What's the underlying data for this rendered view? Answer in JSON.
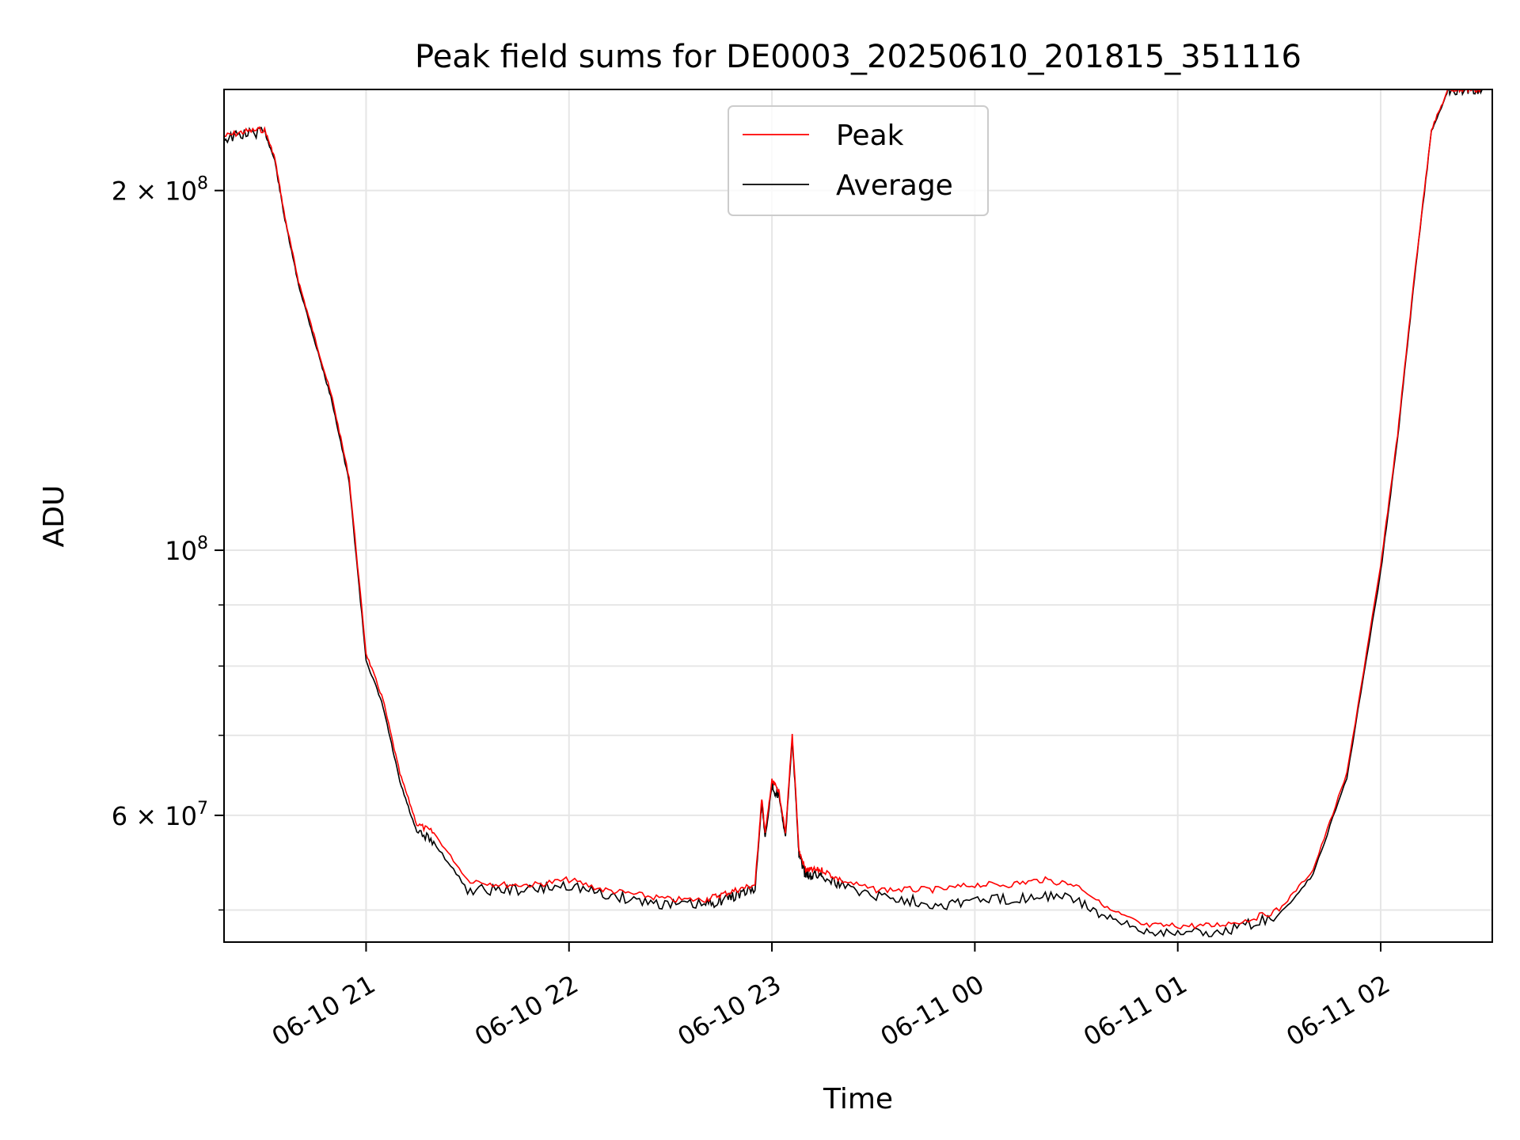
{
  "chart_data": {
    "type": "line",
    "title": "Peak field sums for DE0003_20250610_201815_351116",
    "xlabel": "Time",
    "ylabel": "ADU",
    "yscale": "log",
    "grid": true,
    "legend_position": "top-center",
    "xlim": [
      "2025-06-10 20:18",
      "2025-06-11 02:33"
    ],
    "ylim": [
      47000000,
      243000000
    ],
    "x_ticks": [
      {
        "value": "2025-06-10 21:00",
        "label": "06-10 21"
      },
      {
        "value": "2025-06-10 22:00",
        "label": "06-10 22"
      },
      {
        "value": "2025-06-10 23:00",
        "label": "06-10 23"
      },
      {
        "value": "2025-06-11 00:00",
        "label": "06-11 00"
      },
      {
        "value": "2025-06-11 01:00",
        "label": "06-11 01"
      },
      {
        "value": "2025-06-11 02:00",
        "label": "06-11 02"
      }
    ],
    "y_major_ticks": [
      {
        "value": 200000000,
        "mantissa": "2",
        "exponent": "8"
      },
      {
        "value": 100000000,
        "mantissa": "",
        "exponent": "8"
      },
      {
        "value": 60000000,
        "mantissa": "6",
        "exponent": "7"
      }
    ],
    "y_minor_ticks": [
      50000000,
      70000000,
      80000000,
      90000000
    ],
    "series": [
      {
        "name": "Peak",
        "color": "#ff0000",
        "x": [
          "2025-06-10 20:18",
          "2025-06-10 20:24",
          "2025-06-10 20:30",
          "2025-06-10 20:33",
          "2025-06-10 20:36",
          "2025-06-10 20:40",
          "2025-06-10 20:45",
          "2025-06-10 20:50",
          "2025-06-10 20:55",
          "2025-06-10 21:00",
          "2025-06-10 21:05",
          "2025-06-10 21:10",
          "2025-06-10 21:15",
          "2025-06-10 21:20",
          "2025-06-10 21:30",
          "2025-06-10 21:40",
          "2025-06-10 21:50",
          "2025-06-10 22:00",
          "2025-06-10 22:10",
          "2025-06-10 22:20",
          "2025-06-10 22:30",
          "2025-06-10 22:40",
          "2025-06-10 22:45",
          "2025-06-10 22:50",
          "2025-06-10 22:55",
          "2025-06-10 22:57",
          "2025-06-10 22:58",
          "2025-06-10 23:00",
          "2025-06-10 23:02",
          "2025-06-10 23:04",
          "2025-06-10 23:06",
          "2025-06-10 23:07",
          "2025-06-10 23:08",
          "2025-06-10 23:10",
          "2025-06-10 23:12",
          "2025-06-10 23:15",
          "2025-06-10 23:20",
          "2025-06-10 23:30",
          "2025-06-10 23:40",
          "2025-06-10 23:50",
          "2025-06-11 00:00",
          "2025-06-11 00:10",
          "2025-06-11 00:20",
          "2025-06-11 00:30",
          "2025-06-11 00:40",
          "2025-06-11 00:50",
          "2025-06-11 01:00",
          "2025-06-11 01:10",
          "2025-06-11 01:20",
          "2025-06-11 01:30",
          "2025-06-11 01:40",
          "2025-06-11 01:50",
          "2025-06-11 02:00",
          "2025-06-11 02:05",
          "2025-06-11 02:10",
          "2025-06-11 02:15",
          "2025-06-11 02:20",
          "2025-06-11 02:25",
          "2025-06-11 02:30"
        ],
        "y": [
          222000000,
          224000000,
          225000000,
          213000000,
          190000000,
          168000000,
          150000000,
          134000000,
          115000000,
          82000000,
          75000000,
          65000000,
          59000000,
          58000000,
          53000000,
          52500000,
          52500000,
          53000000,
          52000000,
          51500000,
          51000000,
          51000000,
          51500000,
          52000000,
          52500000,
          62000000,
          58000000,
          64000000,
          63000000,
          58000000,
          70000000,
          63000000,
          56000000,
          54000000,
          54000000,
          54000000,
          53000000,
          52000000,
          52000000,
          52000000,
          52500000,
          52500000,
          53000000,
          52500000,
          50000000,
          48500000,
          48500000,
          48500000,
          49000000,
          50000000,
          54000000,
          65000000,
          97000000,
          125000000,
          170000000,
          225000000,
          243000000,
          243000000,
          243000000
        ]
      },
      {
        "name": "Average",
        "color": "#000000",
        "x": [
          "2025-06-10 20:18",
          "2025-06-10 20:24",
          "2025-06-10 20:30",
          "2025-06-10 20:33",
          "2025-06-10 20:36",
          "2025-06-10 20:40",
          "2025-06-10 20:45",
          "2025-06-10 20:50",
          "2025-06-10 20:55",
          "2025-06-10 21:00",
          "2025-06-10 21:05",
          "2025-06-10 21:10",
          "2025-06-10 21:15",
          "2025-06-10 21:20",
          "2025-06-10 21:30",
          "2025-06-10 21:40",
          "2025-06-10 21:50",
          "2025-06-10 22:00",
          "2025-06-10 22:10",
          "2025-06-10 22:20",
          "2025-06-10 22:30",
          "2025-06-10 22:40",
          "2025-06-10 22:45",
          "2025-06-10 22:50",
          "2025-06-10 22:55",
          "2025-06-10 22:57",
          "2025-06-10 22:58",
          "2025-06-10 23:00",
          "2025-06-10 23:02",
          "2025-06-10 23:04",
          "2025-06-10 23:06",
          "2025-06-10 23:07",
          "2025-06-10 23:08",
          "2025-06-10 23:10",
          "2025-06-10 23:12",
          "2025-06-10 23:15",
          "2025-06-10 23:20",
          "2025-06-10 23:30",
          "2025-06-10 23:40",
          "2025-06-10 23:50",
          "2025-06-11 00:00",
          "2025-06-11 00:10",
          "2025-06-11 00:20",
          "2025-06-11 00:30",
          "2025-06-11 00:40",
          "2025-06-11 00:50",
          "2025-06-11 01:00",
          "2025-06-11 01:10",
          "2025-06-11 01:20",
          "2025-06-11 01:30",
          "2025-06-11 01:40",
          "2025-06-11 01:50",
          "2025-06-11 02:00",
          "2025-06-11 02:05",
          "2025-06-11 02:10",
          "2025-06-11 02:15",
          "2025-06-11 02:20",
          "2025-06-11 02:25",
          "2025-06-11 02:30"
        ],
        "y": [
          221000000,
          223000000,
          224000000,
          212000000,
          189000000,
          167000000,
          149000000,
          133000000,
          114000000,
          81000000,
          74000000,
          64000000,
          58000000,
          57000000,
          52000000,
          52000000,
          52000000,
          52500000,
          51500000,
          51000000,
          50500000,
          50500000,
          51000000,
          51500000,
          52000000,
          61500000,
          57500000,
          63500000,
          62500000,
          57500000,
          69500000,
          62500000,
          55500000,
          53500000,
          53500000,
          53500000,
          52500000,
          51500000,
          51000000,
          50500000,
          51000000,
          51000000,
          51500000,
          51000000,
          49000000,
          48000000,
          48000000,
          47800000,
          48500000,
          49500000,
          53500000,
          64500000,
          96000000,
          124000000,
          169000000,
          224000000,
          243000000,
          243000000,
          243000000
        ]
      }
    ]
  }
}
